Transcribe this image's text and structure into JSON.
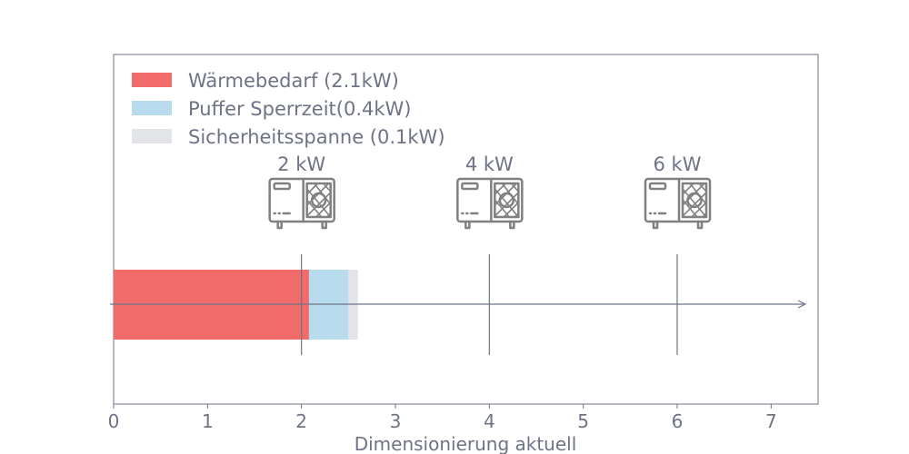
{
  "chart_data": {
    "type": "bar",
    "orientation": "horizontal-stacked",
    "xlabel": "Dimensionierung aktuell",
    "xlim": [
      0,
      7.5
    ],
    "xticks": [
      "0",
      "1",
      "2",
      "3",
      "4",
      "5",
      "6",
      "7"
    ],
    "grid": false,
    "legend_position": "top-left",
    "series": [
      {
        "name": "Wärmebedarf (2.1kW)",
        "value": 2.08,
        "color": "#f26b6b"
      },
      {
        "name": "Puffer Sperrzeit(0.4kW)",
        "value": 0.42,
        "color": "#b8dcee"
      },
      {
        "name": "Sicherheitsspanne (0.1kW)",
        "value": 0.1,
        "color": "#e3e4e8"
      }
    ],
    "heat_pump_markers": [
      {
        "label": "2 kW",
        "x": 2,
        "icon": "heat-pump-outdoor-unit-icon"
      },
      {
        "label": "4 kW",
        "x": 4,
        "icon": "heat-pump-outdoor-unit-icon"
      },
      {
        "label": "6 kW",
        "x": 6,
        "icon": "heat-pump-outdoor-unit-icon"
      }
    ],
    "colors": {
      "axis": "#6e7386",
      "icon": "#808080"
    }
  }
}
